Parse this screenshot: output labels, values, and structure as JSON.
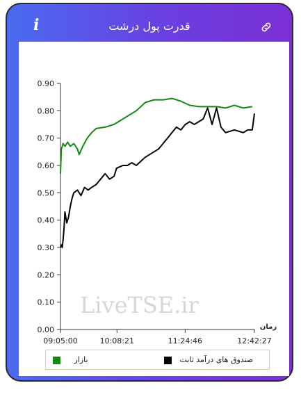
{
  "header": {
    "title": "قدرت پول درشت",
    "info_icon": "info-icon",
    "link_icon": "link-icon"
  },
  "watermark": "LiveTSE.ir",
  "colors": {
    "frame_start": "#4a6bf0",
    "frame_end": "#7b2fd6",
    "market_series": "#118811",
    "fund_series": "#000000"
  },
  "chart_data": {
    "type": "line",
    "xlabel": "زمان",
    "ylabel": "",
    "ylim": [
      0,
      0.9
    ],
    "yticks": [
      "0.00",
      "0.10",
      "0.20",
      "0.30",
      "0.40",
      "0.50",
      "0.60",
      "0.70",
      "0.80",
      "0.90"
    ],
    "xticks": [
      "09:05:00",
      "10:08:21",
      "11:24:46",
      "12:42:27"
    ],
    "xrange": [
      "09:05:00",
      "12:42:27"
    ],
    "grid": false,
    "legend_position": "bottom",
    "series": [
      {
        "name": "بازار",
        "color": "#118811",
        "x": [
          "09:05:00",
          "09:06:00",
          "09:08:00",
          "09:10:00",
          "09:13:00",
          "09:16:00",
          "09:20:00",
          "09:24:00",
          "09:26:00",
          "09:30:00",
          "09:35:00",
          "09:40:00",
          "09:45:00",
          "09:55:00",
          "10:05:00",
          "10:10:00",
          "10:20:00",
          "10:30:00",
          "10:40:00",
          "10:50:00",
          "11:00:00",
          "11:10:00",
          "11:20:00",
          "11:30:00",
          "11:40:00",
          "11:50:00",
          "12:00:00",
          "12:10:00",
          "12:20:00",
          "12:30:00",
          "12:40:00"
        ],
        "values": [
          0.57,
          0.66,
          0.68,
          0.67,
          0.685,
          0.67,
          0.68,
          0.66,
          0.64,
          0.67,
          0.7,
          0.72,
          0.735,
          0.74,
          0.75,
          0.76,
          0.78,
          0.8,
          0.83,
          0.84,
          0.84,
          0.845,
          0.835,
          0.82,
          0.815,
          0.815,
          0.815,
          0.81,
          0.82,
          0.81,
          0.815
        ]
      },
      {
        "name": "صندوق های درآمد ثابت",
        "color": "#000000",
        "x": [
          "09:05:00",
          "09:06:00",
          "09:07:00",
          "09:08:00",
          "09:09:00",
          "09:10:00",
          "09:12:00",
          "09:14:00",
          "09:16:00",
          "09:18:00",
          "09:20:00",
          "09:24:00",
          "09:28:00",
          "09:32:00",
          "09:36:00",
          "09:40:00",
          "09:45:00",
          "09:50:00",
          "09:55:00",
          "10:00:00",
          "10:05:00",
          "10:08:00",
          "10:15:00",
          "10:20:00",
          "10:25:00",
          "10:30:00",
          "10:40:00",
          "10:45:00",
          "10:50:00",
          "10:55:00",
          "11:00:00",
          "11:05:00",
          "11:10:00",
          "11:15:00",
          "11:20:00",
          "11:25:00",
          "11:30:00",
          "11:35:00",
          "11:40:00",
          "11:45:00",
          "11:50:00",
          "11:55:00",
          "12:00:00",
          "12:05:00",
          "12:10:00",
          "12:20:00",
          "12:30:00",
          "12:35:00",
          "12:40:00",
          "12:42:27"
        ],
        "values": [
          0.3,
          0.31,
          0.3,
          0.33,
          0.37,
          0.43,
          0.39,
          0.41,
          0.45,
          0.48,
          0.5,
          0.51,
          0.49,
          0.52,
          0.51,
          0.52,
          0.53,
          0.55,
          0.57,
          0.55,
          0.56,
          0.59,
          0.6,
          0.6,
          0.61,
          0.6,
          0.63,
          0.64,
          0.65,
          0.66,
          0.68,
          0.7,
          0.72,
          0.74,
          0.73,
          0.75,
          0.76,
          0.75,
          0.76,
          0.77,
          0.81,
          0.75,
          0.81,
          0.74,
          0.72,
          0.73,
          0.72,
          0.73,
          0.73,
          0.79
        ]
      }
    ]
  },
  "legend": {
    "market_label": "بازار",
    "fund_label": "صندوق های درآمد ثابت"
  }
}
